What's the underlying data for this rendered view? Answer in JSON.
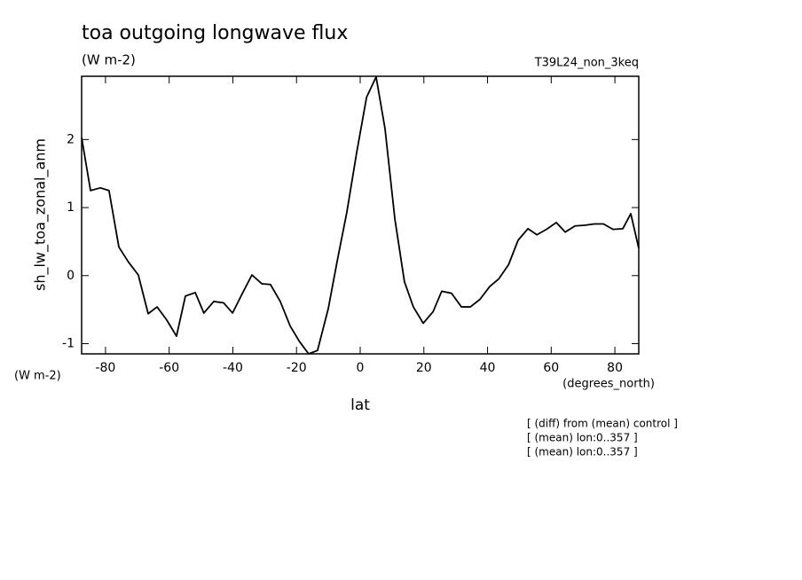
{
  "chart_data": {
    "type": "line",
    "title": "toa outgoing longwave flux",
    "subtitle": "(W m-2)",
    "run_label": "T39L24_non_3keq",
    "y_label": "sh_lw_toa_zonal_anm",
    "y_units": "(W m-2)",
    "x_label": "lat",
    "x_units": "(degrees_north)",
    "notes": [
      "[ (diff) from (mean) control ]",
      "[ (mean) lon:0..357 ]",
      "[ (mean) lon:0..357 ]"
    ],
    "x": [
      -87.5,
      -84.7,
      -81.6,
      -78.9,
      -75.8,
      -72.8,
      -69.7,
      -66.6,
      -63.8,
      -60.8,
      -57.7,
      -54.9,
      -51.8,
      -49.1,
      -46.0,
      -42.9,
      -40.1,
      -37.1,
      -34.0,
      -30.9,
      -28.2,
      -25.1,
      -22.0,
      -19.2,
      -16.2,
      -13.4,
      -10.0,
      -7.2,
      -4.2,
      -1.1,
      2.0,
      5.0,
      7.8,
      10.9,
      13.9,
      16.7,
      19.8,
      22.9,
      25.6,
      28.7,
      31.8,
      34.6,
      37.6,
      40.7,
      43.5,
      46.6,
      49.6,
      52.7,
      55.5,
      58.5,
      61.6,
      64.4,
      67.5,
      70.5,
      73.6,
      76.4,
      79.4,
      82.5,
      85.0,
      87.5
    ],
    "series": [
      {
        "name": "sh_lw_toa_zonal_anm",
        "color": "#000000",
        "values": [
          2.03,
          1.25,
          1.29,
          1.25,
          0.42,
          0.2,
          0.01,
          -0.56,
          -0.46,
          -0.65,
          -0.89,
          -0.3,
          -0.25,
          -0.55,
          -0.38,
          -0.4,
          -0.55,
          -0.27,
          0.01,
          -0.12,
          -0.13,
          -0.38,
          -0.74,
          -0.96,
          -1.15,
          -1.1,
          -0.48,
          0.22,
          0.93,
          1.81,
          2.62,
          2.92,
          2.16,
          0.83,
          -0.09,
          -0.46,
          -0.7,
          -0.53,
          -0.23,
          -0.26,
          -0.46,
          -0.46,
          -0.35,
          -0.16,
          -0.05,
          0.16,
          0.52,
          0.69,
          0.6,
          0.68,
          0.78,
          0.64,
          0.73,
          0.74,
          0.76,
          0.76,
          0.68,
          0.69,
          0.91,
          0.4
        ]
      }
    ],
    "xlim": [
      -87.5,
      87.5
    ],
    "ylim": [
      -1.15,
      2.93
    ],
    "xticks": [
      -80,
      -60,
      -40,
      -20,
      0,
      20,
      40,
      60,
      80
    ],
    "yticks": [
      -1,
      0,
      1,
      2
    ],
    "grid": false
  }
}
